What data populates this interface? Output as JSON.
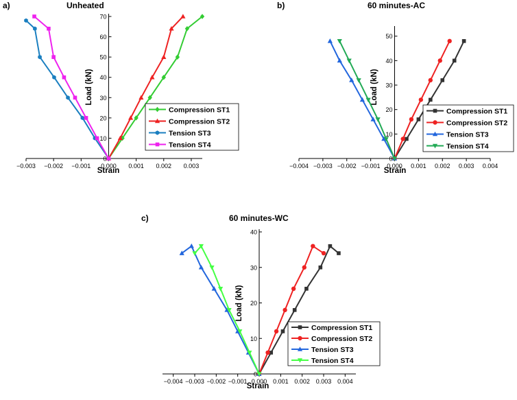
{
  "colors": {
    "green": "#33cc33",
    "red": "#ee2222",
    "blue": "#1a7fc0",
    "magenta": "#ee22ee",
    "black": "#333333",
    "blue2": "#2266dd",
    "green2": "#22aa55",
    "green_tri": "#44ff44",
    "navy": "#1111aa"
  },
  "chart_data": [
    {
      "type": "line",
      "panel_label": "a)",
      "title": "Unheated",
      "xlabel": "Strain",
      "ylabel": "Load (kN)",
      "xlim": [
        -0.003,
        0.0034
      ],
      "ylim": [
        0,
        70
      ],
      "xticks": [
        -0.003,
        -0.002,
        -0.001,
        0.0,
        0.001,
        0.002,
        0.003
      ],
      "xtick_labels": [
        "−0.003",
        "−0.002",
        "−0.001",
        "0.000",
        "0.001",
        "0.002",
        "0.003"
      ],
      "yticks": [
        0,
        10,
        20,
        30,
        40,
        50,
        60,
        70
      ],
      "ytick_labels": [
        "0",
        "10",
        "20",
        "30",
        "40",
        "50",
        "60",
        "70"
      ],
      "legend_position": "right-middle",
      "series": [
        {
          "name": "Compression ST1",
          "color": "green",
          "marker": "diamond",
          "x": [
            0,
            0.0005,
            0.001,
            0.0015,
            0.002,
            0.0025,
            0.00285,
            0.0034
          ],
          "y": [
            0,
            10,
            20,
            30,
            40,
            50,
            64,
            70
          ]
        },
        {
          "name": "Compression ST2",
          "color": "red",
          "marker": "triangle-up",
          "x": [
            0,
            0.00042,
            0.0008,
            0.00118,
            0.00158,
            0.002,
            0.00228,
            0.0027
          ],
          "y": [
            0,
            10,
            20,
            30,
            40,
            50,
            64,
            70
          ]
        },
        {
          "name": "Tension ST3",
          "color": "blue",
          "marker": "hexagon",
          "x": [
            0,
            -0.0005,
            -0.00095,
            -0.00148,
            -0.00198,
            -0.0025,
            -0.00268,
            -0.003
          ],
          "y": [
            0,
            10,
            20,
            30,
            40,
            50,
            64,
            68
          ]
        },
        {
          "name": "Tension ST4",
          "color": "magenta",
          "marker": "square",
          "x": [
            0,
            -0.00042,
            -0.00082,
            -0.00122,
            -0.00162,
            -0.002,
            -0.00218,
            -0.0027
          ],
          "y": [
            0,
            10,
            20,
            30,
            40,
            50,
            64,
            70
          ]
        }
      ]
    },
    {
      "type": "line",
      "panel_label": "b)",
      "title": "60 minutes-AC",
      "xlabel": "Strain",
      "ylabel": "Load (kN)",
      "xlim": [
        -0.004,
        0.004
      ],
      "ylim": [
        0,
        53
      ],
      "xticks": [
        -0.004,
        -0.003,
        -0.002,
        -0.001,
        0.0,
        0.001,
        0.002,
        0.003,
        0.004
      ],
      "xtick_labels": [
        "−0.004",
        "−0.003",
        "−0.002",
        "−0.001",
        "0.000",
        "0.001",
        "0.002",
        "0.003",
        "0.004"
      ],
      "yticks": [
        0,
        10,
        20,
        30,
        40,
        50
      ],
      "ytick_labels": [
        "0",
        "10",
        "20",
        "30",
        "40",
        "50"
      ],
      "legend_position": "right-bottom",
      "series": [
        {
          "name": "Compression ST1",
          "color": "black",
          "marker": "square",
          "x": [
            0,
            0.0005,
            0.001,
            0.0015,
            0.002,
            0.0025,
            0.0029
          ],
          "y": [
            0,
            8,
            16,
            24,
            32,
            40,
            48
          ]
        },
        {
          "name": "Compression ST2",
          "color": "red",
          "marker": "circle",
          "x": [
            0,
            0.00035,
            0.0007,
            0.0011,
            0.0015,
            0.0019,
            0.0023
          ],
          "y": [
            0,
            8,
            16,
            24,
            32,
            40,
            48
          ]
        },
        {
          "name": "Tension ST3",
          "color": "blue2",
          "marker": "triangle-up",
          "x": [
            0,
            -0.00045,
            -0.0009,
            -0.00135,
            -0.0018,
            -0.0023,
            -0.0027
          ],
          "y": [
            0,
            8,
            16,
            24,
            32,
            40,
            48
          ]
        },
        {
          "name": "Tension ST4",
          "color": "green2",
          "marker": "triangle-down",
          "x": [
            0,
            -0.00035,
            -0.0007,
            -0.0011,
            -0.0015,
            -0.0019,
            -0.0023
          ],
          "y": [
            0,
            8,
            16,
            24,
            32,
            40,
            48
          ]
        }
      ]
    },
    {
      "type": "line",
      "panel_label": "c)",
      "title": "60 minutes-WC",
      "xlabel": "Strain",
      "ylabel": "Load (kN)",
      "xlim": [
        -0.0045,
        0.0045
      ],
      "ylim": [
        0,
        40
      ],
      "xticks": [
        -0.004,
        -0.003,
        -0.002,
        -0.001,
        0.0,
        0.001,
        0.002,
        0.003,
        0.004
      ],
      "xtick_labels": [
        "−0.004",
        "−0.003",
        "−0.002",
        "−0.001",
        "0.000",
        "0.001",
        "0.002",
        "0.003",
        "0.004"
      ],
      "yticks": [
        0,
        10,
        20,
        30,
        40
      ],
      "ytick_labels": [
        "0",
        "10",
        "20",
        "30",
        "40"
      ],
      "legend_position": "right-bottom",
      "series": [
        {
          "name": "Compression ST1",
          "color": "black",
          "marker": "square",
          "x": [
            0,
            0.00055,
            0.0011,
            0.00165,
            0.0022,
            0.00285,
            0.0033,
            0.0037
          ],
          "y": [
            0,
            6,
            12,
            18,
            24,
            30,
            36,
            34
          ]
        },
        {
          "name": "Compression ST2",
          "color": "red",
          "marker": "circle",
          "x": [
            0,
            0.0004,
            0.0008,
            0.0012,
            0.0016,
            0.0021,
            0.0025,
            0.003
          ],
          "y": [
            0,
            6,
            12,
            18,
            24,
            30,
            36,
            34
          ]
        },
        {
          "name": "Tension ST3",
          "color": "blue2",
          "marker": "triangle-up",
          "x": [
            0,
            -0.0005,
            -0.001,
            -0.0015,
            -0.0021,
            -0.0027,
            -0.00315,
            -0.0036
          ],
          "y": [
            0,
            6,
            12,
            18,
            24,
            30,
            36,
            34
          ]
        },
        {
          "name": "Tension ST4",
          "color": "green_tri",
          "marker": "triangle-down",
          "x": [
            0,
            -0.00045,
            -0.0009,
            -0.0014,
            -0.0018,
            -0.0022,
            -0.0027,
            -0.003
          ],
          "y": [
            0,
            6,
            12,
            18,
            24,
            30,
            36,
            34
          ]
        }
      ]
    }
  ]
}
